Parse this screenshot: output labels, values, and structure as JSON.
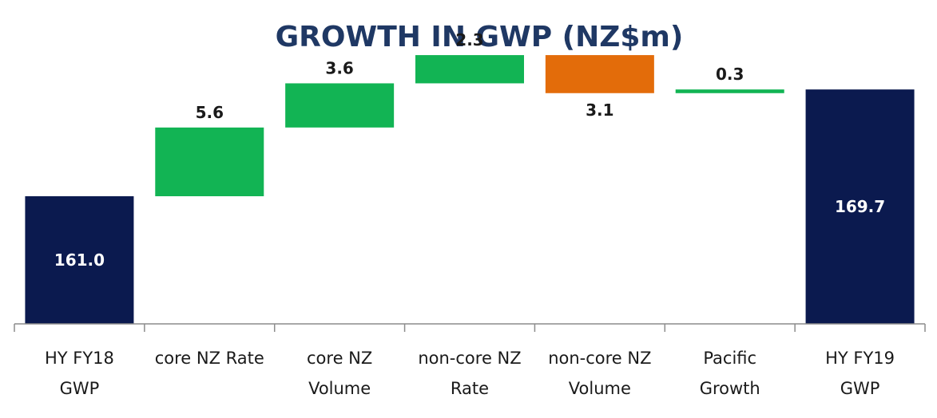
{
  "chart_data": {
    "type": "bar",
    "subtype": "waterfall",
    "title": "GROWTH IN GWP (NZ$m)",
    "xlabel": "",
    "ylabel": "",
    "grid": false,
    "legend": "none",
    "categories": [
      [
        "HY FY18",
        "GWP"
      ],
      [
        "core NZ Rate"
      ],
      [
        "core NZ",
        "Volume"
      ],
      [
        "non-core NZ",
        "Rate"
      ],
      [
        "non-core NZ",
        "Volume"
      ],
      [
        "Pacific",
        "Growth"
      ],
      [
        "HY FY19",
        "GWP"
      ]
    ],
    "steps": [
      {
        "kind": "total",
        "value": 161.0,
        "label": "161.0"
      },
      {
        "kind": "increase",
        "value": 5.6,
        "label": "5.6"
      },
      {
        "kind": "increase",
        "value": 3.6,
        "label": "3.6"
      },
      {
        "kind": "increase",
        "value": 2.3,
        "label": "2.3"
      },
      {
        "kind": "decrease",
        "value": 3.1,
        "label": "3.1"
      },
      {
        "kind": "increase",
        "value": 0.3,
        "label": "0.3"
      },
      {
        "kind": "total",
        "value": 169.7,
        "label": "169.7"
      }
    ],
    "ylim": [
      150.6,
      174
    ],
    "colors": {
      "total": "#0b1a4f",
      "increase": "#12b454",
      "decrease": "#e36c0a",
      "title": "#1f3864",
      "axis": "#8c8c8c"
    }
  }
}
